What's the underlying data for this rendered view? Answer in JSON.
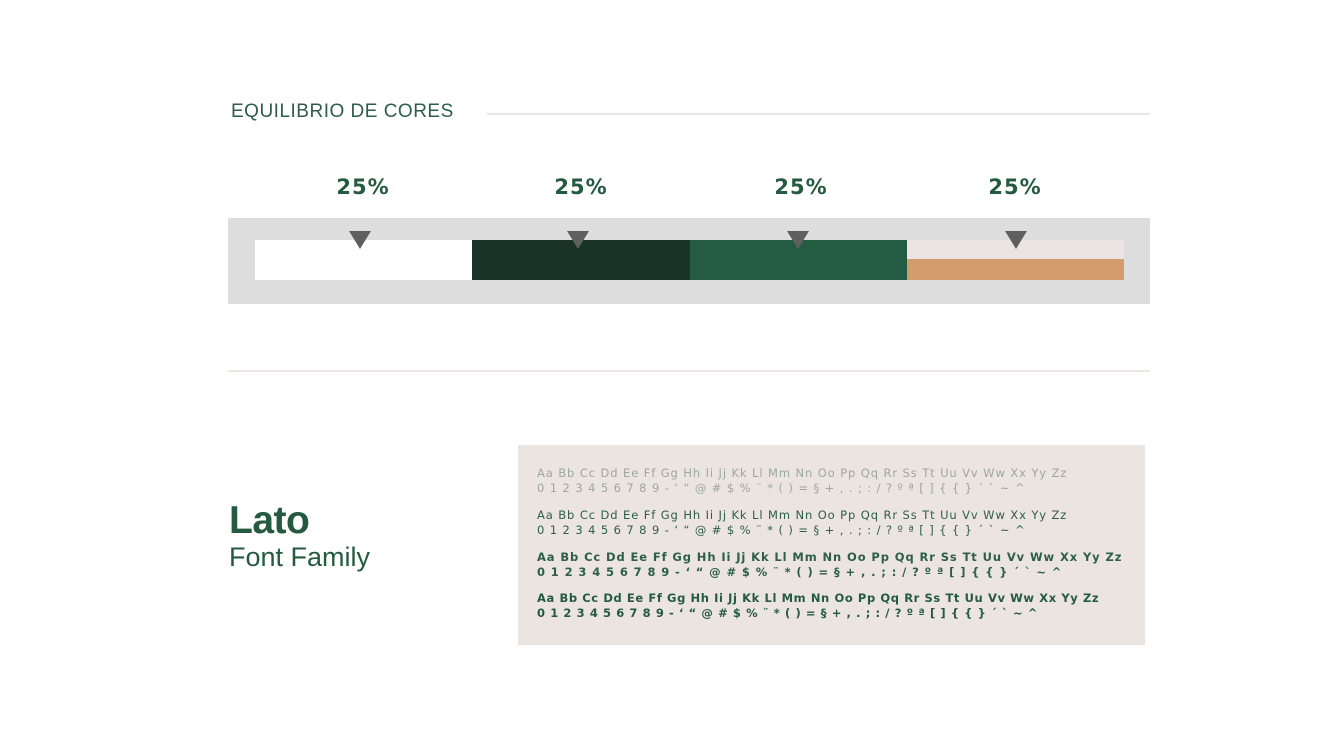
{
  "color_balance": {
    "title": "EQUILIBRIO DE CORES",
    "segments": [
      {
        "percent": "25%",
        "value": 25,
        "colors": [
          "#ffffff"
        ]
      },
      {
        "percent": "25%",
        "value": 25,
        "colors": [
          "#193328"
        ]
      },
      {
        "percent": "25%",
        "value": 25,
        "colors": [
          "#245b43"
        ]
      },
      {
        "percent": "25%",
        "value": 25,
        "colors": [
          "#ece4e4",
          "#d39d6b"
        ]
      }
    ],
    "frame_color": "#dddddd",
    "marker_color": "#5f5f5f",
    "marker_icon": "triangle-down-icon"
  },
  "typography": {
    "font_name": "Lato",
    "font_label": "Font Family",
    "specimen_background": "#ece4e1",
    "specimens": [
      {
        "weight": "light",
        "alphabet": "Aa Bb Cc Dd Ee Ff Gg Hh Ii Jj Kk Ll Mm Nn Oo Pp Qq Rr Ss Tt Uu Vv Ww Xx Yy Zz",
        "symbols": "0 1 2 3 4 5 6 7 8 9 - ‘ “ @ # $ % ¨ * ( ) = § + , . ; : / ? º ª [ ] { { } ´ ` ~ ^"
      },
      {
        "weight": "regular",
        "alphabet": "Aa Bb Cc Dd Ee Ff Gg Hh Ii Jj Kk Ll Mm Nn Oo Pp Qq Rr Ss Tt Uu Vv Ww Xx Yy Zz",
        "symbols": "0 1 2 3 4 5 6 7 8 9 - ‘ “ @ # $ % ¨ * ( ) = § + , . ; : / ? º ª [ ] { { } ´ ` ~ ^"
      },
      {
        "weight": "medium",
        "alphabet": "Aa Bb Cc Dd Ee Ff Gg Hh Ii Jj Kk Ll Mm Nn Oo Pp Qq Rr Ss Tt Uu Vv Ww Xx Yy Zz",
        "symbols": "0 1 2 3 4 5 6 7 8 9 - ‘ “ @ # $ % ¨ * ( ) = § + , . ; : / ? º ª [ ] { { } ´ ` ~ ^"
      },
      {
        "weight": "bold",
        "alphabet": "Aa Bb Cc Dd Ee Ff Gg Hh Ii Jj Kk Ll Mm Nn Oo Pp Qq Rr Ss Tt Uu Vv Ww Xx Yy Zz",
        "symbols": "0 1 2 3 4 5 6 7 8 9 - ‘ “ @ # $ % ¨ * ( ) = § + , . ; : / ? º ª [ ] { { } ´ ` ~ ^"
      }
    ]
  }
}
